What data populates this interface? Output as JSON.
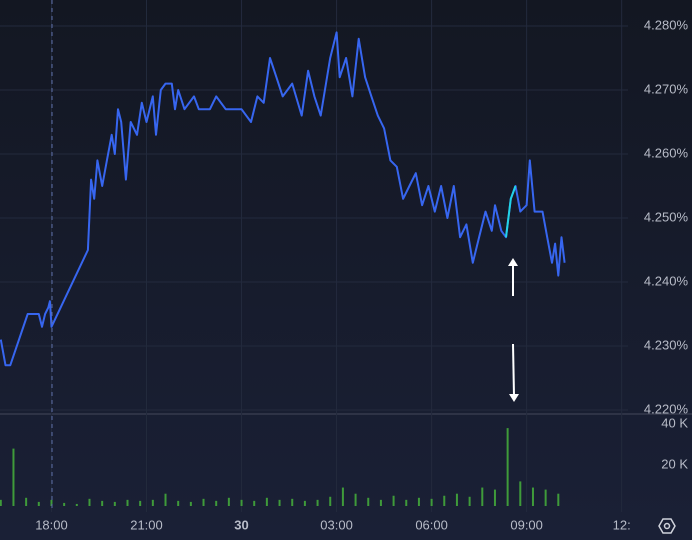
{
  "chart_data": [
    {
      "type": "line",
      "x": [
        16.4,
        16.55,
        16.7,
        17.25,
        17.6,
        17.7,
        17.8,
        17.9,
        17.95,
        18.0,
        19.15,
        19.25,
        19.35,
        19.45,
        19.6,
        19.75,
        19.9,
        20.0,
        20.1,
        20.2,
        20.35,
        20.5,
        20.7,
        20.85,
        21.0,
        21.2,
        21.3,
        21.45,
        21.6,
        21.8,
        21.9,
        22.0,
        22.2,
        22.5,
        22.65,
        23.0,
        23.2,
        23.5,
        24.0,
        24.3,
        24.5,
        24.7,
        24.9,
        25.1,
        25.3,
        25.6,
        25.9,
        26.1,
        26.3,
        26.5,
        26.8,
        27.0,
        27.1,
        27.3,
        27.5,
        27.7,
        27.9,
        28.1,
        28.3,
        28.5,
        28.7,
        28.9,
        29.1,
        29.3,
        29.5,
        29.7,
        29.9,
        30.1,
        30.3,
        30.5,
        30.7,
        30.9,
        31.1,
        31.3,
        31.5,
        31.7,
        31.9,
        32.0,
        32.2,
        32.35,
        32.5,
        32.65,
        32.8,
        33.0,
        33.1,
        33.25,
        33.5,
        33.65,
        33.8,
        33.9,
        34.0,
        34.1,
        34.2
      ],
      "series": [
        {
          "color": "#3766f0",
          "values": [
            4.231,
            4.227,
            4.227,
            4.235,
            4.235,
            4.233,
            4.235,
            4.236,
            4.237,
            4.233,
            4.245,
            4.256,
            4.253,
            4.259,
            4.255,
            4.259,
            4.263,
            4.26,
            4.267,
            4.265,
            4.256,
            4.265,
            4.263,
            4.268,
            4.265,
            4.269,
            4.263,
            4.27,
            4.271,
            4.271,
            4.267,
            4.27,
            4.267,
            4.269,
            4.267,
            4.267,
            4.269,
            4.267,
            4.267,
            4.265,
            4.269,
            4.268,
            4.275,
            4.272,
            4.269,
            4.271,
            4.266,
            4.273,
            4.269,
            4.266,
            4.275,
            4.279,
            4.272,
            4.275,
            4.269,
            4.278,
            4.272,
            4.269,
            4.266,
            4.264,
            4.259,
            4.258,
            4.253,
            4.255,
            4.257,
            4.252,
            4.255,
            4.251,
            4.255,
            4.25,
            4.255,
            4.247,
            4.249,
            4.243,
            4.247,
            4.251,
            4.248,
            4.252,
            4.248,
            4.247,
            4.253,
            4.255,
            4.251,
            4.252,
            4.259,
            4.251,
            4.251,
            4.247,
            4.243,
            4.246,
            4.241,
            4.247,
            4.243
          ]
        },
        {
          "color": "#22d3e6",
          "values": [
            null,
            null,
            null,
            null,
            null,
            null,
            null,
            null,
            null,
            null,
            null,
            null,
            null,
            null,
            null,
            null,
            null,
            null,
            null,
            null,
            null,
            null,
            null,
            null,
            null,
            null,
            null,
            null,
            null,
            null,
            null,
            null,
            null,
            null,
            null,
            null,
            null,
            null,
            null,
            null,
            null,
            null,
            null,
            null,
            null,
            null,
            null,
            null,
            null,
            null,
            null,
            null,
            null,
            null,
            null,
            null,
            null,
            null,
            null,
            null,
            null,
            null,
            null,
            null,
            null,
            null,
            null,
            null,
            null,
            null,
            null,
            null,
            null,
            null,
            null,
            null,
            null,
            null,
            null,
            4.247,
            4.253,
            4.255,
            null,
            null,
            null,
            null,
            null,
            null,
            null,
            null,
            null,
            null,
            null
          ]
        }
      ],
      "xlim": [
        16.375,
        36.2
      ],
      "xticks": [
        {
          "value": 18,
          "label": "18:00"
        },
        {
          "value": 21,
          "label": "21:00"
        },
        {
          "value": 24,
          "label": "30"
        },
        {
          "value": 27,
          "label": "03:00"
        },
        {
          "value": 30,
          "label": "06:00"
        },
        {
          "value": 33,
          "label": "09:00"
        },
        {
          "value": 36,
          "label": "12:"
        }
      ],
      "ylim": [
        4.21953,
        4.28406
      ],
      "yticks": [
        {
          "value": 4.28,
          "label": "4.280%"
        },
        {
          "value": 4.27,
          "label": "4.270%"
        },
        {
          "value": 4.26,
          "label": "4.260%"
        },
        {
          "value": 4.25,
          "label": "4.250%"
        },
        {
          "value": 4.24,
          "label": "4.240%"
        },
        {
          "value": 4.23,
          "label": "4.230%"
        },
        {
          "value": 4.22,
          "label": "4.220%"
        }
      ],
      "grid": true
    },
    {
      "type": "bar",
      "x": [
        16.4,
        16.8,
        17.2,
        17.6,
        18.0,
        18.4,
        18.8,
        19.2,
        19.6,
        20.0,
        20.4,
        20.8,
        21.2,
        21.6,
        22.0,
        22.4,
        22.8,
        23.2,
        23.6,
        24.0,
        24.4,
        24.8,
        25.2,
        25.6,
        26.0,
        26.4,
        26.8,
        27.2,
        27.6,
        28.0,
        28.4,
        28.8,
        29.2,
        29.6,
        30.0,
        30.4,
        30.8,
        31.2,
        31.6,
        32.0,
        32.4,
        32.8,
        33.2,
        33.6,
        34.0
      ],
      "values": [
        3000,
        28000,
        4000,
        2000,
        3000,
        1500,
        1000,
        3500,
        2500,
        2000,
        3000,
        2500,
        3000,
        6000,
        2500,
        2000,
        3500,
        2500,
        4000,
        3000,
        2500,
        4000,
        3000,
        3500,
        2500,
        3000,
        4500,
        9000,
        6000,
        4000,
        3000,
        5000,
        3000,
        4000,
        3500,
        5000,
        6000,
        4500,
        9000,
        8000,
        38000,
        12000,
        9000,
        8000,
        6000
      ],
      "color": "#3f9b3a",
      "xlim": [
        16.375,
        36.2
      ],
      "ylim": [
        -1950,
        44390
      ],
      "yticks": [
        {
          "value": 40000,
          "label": "40 K"
        },
        {
          "value": 20000,
          "label": "20 K"
        }
      ]
    }
  ]
}
